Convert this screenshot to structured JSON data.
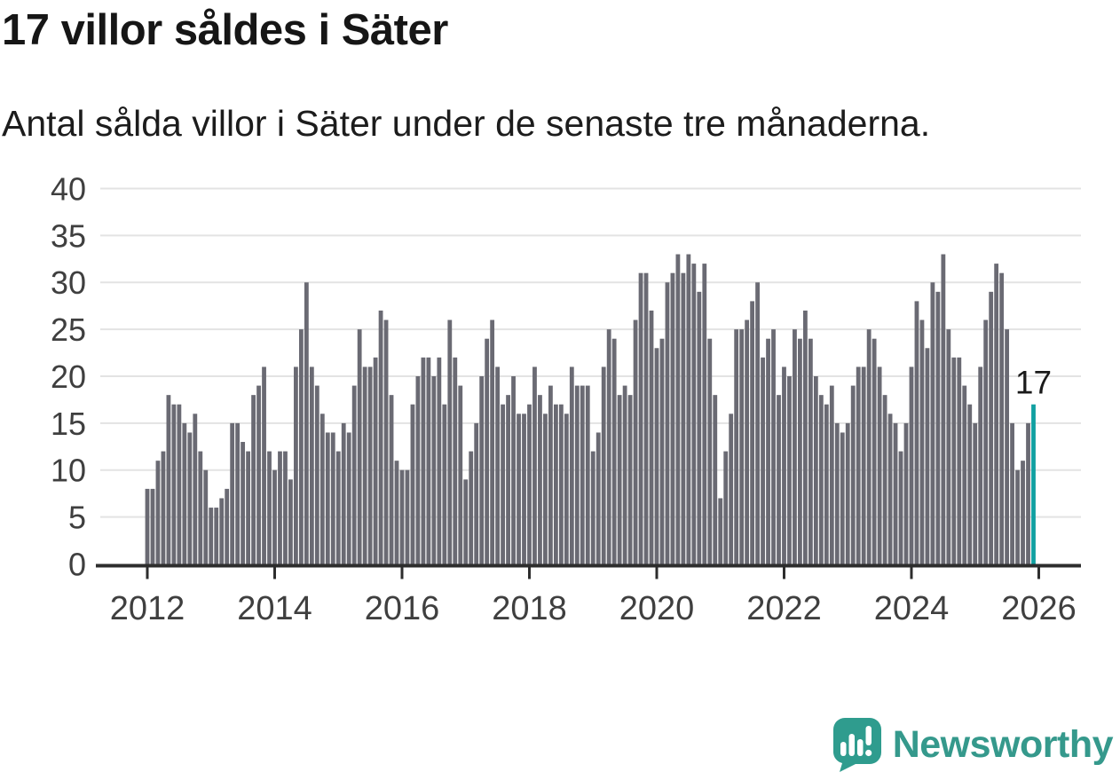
{
  "header": {
    "title": "17 villor såldes i Säter",
    "subtitle": "Antal sålda villor i Säter under de senaste tre månaderna."
  },
  "chart_data": {
    "type": "bar",
    "title": "17 villor såldes i Säter",
    "subtitle": "Antal sålda villor i Säter under de senaste tre månaderna.",
    "ylabel": "",
    "xlabel": "",
    "ylim": [
      0,
      40
    ],
    "y_ticks": [
      0,
      5,
      10,
      15,
      20,
      25,
      30,
      35,
      40
    ],
    "x_tick_labels": [
      "2012",
      "2014",
      "2016",
      "2018",
      "2020",
      "2022",
      "2024",
      "2026"
    ],
    "x_start_year": 2012,
    "months_per_bar": 1,
    "grid": true,
    "values": [
      8,
      8,
      11,
      12,
      18,
      17,
      17,
      15,
      14,
      16,
      12,
      10,
      6,
      6,
      7,
      8,
      15,
      15,
      13,
      12,
      18,
      19,
      21,
      12,
      10,
      12,
      12,
      9,
      21,
      25,
      30,
      21,
      19,
      16,
      14,
      14,
      12,
      15,
      14,
      19,
      25,
      21,
      21,
      22,
      27,
      26,
      18,
      11,
      10,
      10,
      17,
      20,
      22,
      22,
      20,
      22,
      17,
      26,
      22,
      19,
      9,
      12,
      15,
      20,
      24,
      26,
      21,
      17,
      18,
      20,
      16,
      16,
      17,
      21,
      18,
      16,
      19,
      17,
      17,
      16,
      21,
      19,
      19,
      19,
      12,
      14,
      21,
      25,
      24,
      18,
      19,
      18,
      26,
      31,
      31,
      27,
      23,
      24,
      30,
      31,
      33,
      31,
      33,
      32,
      29,
      32,
      24,
      18,
      7,
      12,
      16,
      25,
      25,
      26,
      28,
      30,
      22,
      24,
      25,
      18,
      21,
      20,
      25,
      24,
      27,
      24,
      20,
      18,
      17,
      19,
      15,
      14,
      15,
      19,
      21,
      21,
      25,
      24,
      21,
      18,
      16,
      15,
      12,
      15,
      21,
      28,
      26,
      23,
      30,
      29,
      33,
      25,
      22,
      22,
      19,
      17,
      15,
      21,
      26,
      29,
      32,
      31,
      25,
      15,
      10,
      11,
      15,
      17
    ],
    "highlight": {
      "last_bar": true,
      "value": 17,
      "annotation": "17"
    },
    "colors": {
      "bar": "#6a6a73",
      "highlight": "#11a0a1",
      "grid": "#e3e3e3",
      "axis": "#2d2d2d",
      "tick_label": "#3f3f3f",
      "annotation": "#1a1a1a"
    },
    "legend": null
  },
  "footer": {
    "brand": "Newsworthy",
    "brand_color": "#35998c"
  }
}
